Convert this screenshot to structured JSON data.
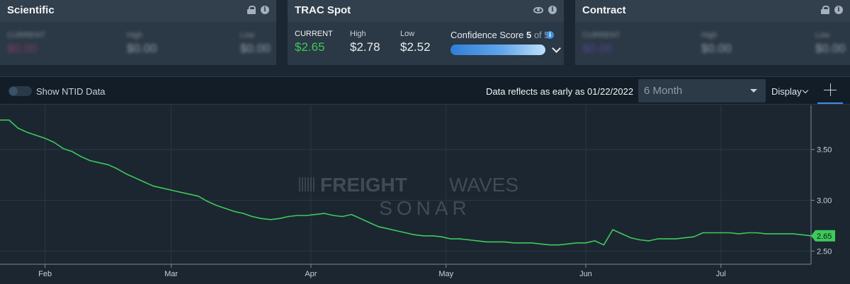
{
  "cards": {
    "scientific": {
      "title": "Scientific",
      "current_label": "CURRENT",
      "current_value": "$0.00",
      "high_label": "High",
      "high_value": "$0.00",
      "low_label": "Low",
      "low_value": "$0.00"
    },
    "trac_spot": {
      "title": "TRAC Spot",
      "current_label": "CURRENT",
      "current_value": "$2.65",
      "high_label": "High",
      "high_value": "$2.78",
      "low_label": "Low",
      "low_value": "$2.52",
      "confidence_label": "Confidence Score",
      "confidence_score": "5",
      "confidence_of": "of 5"
    },
    "contract": {
      "title": "Contract",
      "current_label": "CURRENT",
      "current_value": "$0.00",
      "high_label": "High",
      "high_value": "$0.00",
      "low_label": "Low",
      "low_value": "$0.00"
    }
  },
  "toolbar": {
    "ntid_label": "Show NTID Data",
    "reflects_text": "Data reflects as early as 01/22/2022",
    "range_value": "6 Month",
    "display_label": "Display"
  },
  "watermark": {
    "line1_bold": "FREIGHT",
    "line1_light": "WAVES",
    "line2": "SONAR"
  },
  "colors": {
    "line": "#3ec95a",
    "current_value": "#3ec95a",
    "accent": "#3f8de0"
  },
  "chart_data": {
    "type": "line",
    "title": "",
    "xlabel": "",
    "ylabel": "",
    "ylim": [
      2.37,
      3.88
    ],
    "yticks": [
      2.5,
      3.0,
      3.5
    ],
    "ytick_labels": [
      "2.50",
      "3.00",
      "3.50"
    ],
    "xlim": [
      0,
      180
    ],
    "xticks": [
      10,
      38,
      69,
      99,
      130,
      160
    ],
    "xtick_labels": [
      "Feb",
      "Mar",
      "Apr",
      "May",
      "Jun",
      "Jul"
    ],
    "current_label": "2.65",
    "series": [
      {
        "x": [
          0,
          2,
          4,
          6,
          8,
          10,
          12,
          14,
          16,
          18,
          20,
          22,
          24,
          26,
          28,
          30,
          32,
          34,
          36,
          38,
          40,
          42,
          44,
          46,
          48,
          50,
          52,
          54,
          56,
          58,
          60,
          62,
          64,
          66,
          68,
          70,
          72,
          74,
          76,
          78,
          80,
          82,
          84,
          86,
          88,
          90,
          92,
          94,
          96,
          98,
          100,
          102,
          104,
          106,
          108,
          110,
          112,
          114,
          116,
          118,
          120,
          122,
          124,
          126,
          128,
          130,
          132,
          134,
          136,
          138,
          140,
          142,
          144,
          146,
          148,
          150,
          152,
          154,
          156,
          158,
          160,
          162,
          164,
          166,
          168,
          170,
          172,
          174,
          176,
          178,
          180
        ],
        "y": [
          3.79,
          3.79,
          3.71,
          3.67,
          3.64,
          3.61,
          3.57,
          3.51,
          3.48,
          3.43,
          3.39,
          3.37,
          3.35,
          3.31,
          3.26,
          3.22,
          3.18,
          3.14,
          3.12,
          3.1,
          3.08,
          3.06,
          3.04,
          2.99,
          2.95,
          2.92,
          2.89,
          2.87,
          2.84,
          2.82,
          2.81,
          2.82,
          2.84,
          2.85,
          2.85,
          2.86,
          2.87,
          2.85,
          2.84,
          2.86,
          2.82,
          2.78,
          2.74,
          2.72,
          2.7,
          2.68,
          2.66,
          2.65,
          2.65,
          2.64,
          2.62,
          2.62,
          2.61,
          2.6,
          2.59,
          2.59,
          2.59,
          2.58,
          2.58,
          2.58,
          2.57,
          2.56,
          2.56,
          2.57,
          2.58,
          2.58,
          2.6,
          2.56,
          2.71,
          2.67,
          2.63,
          2.61,
          2.6,
          2.62,
          2.62,
          2.62,
          2.63,
          2.64,
          2.68,
          2.68,
          2.68,
          2.68,
          2.67,
          2.68,
          2.68,
          2.67,
          2.67,
          2.67,
          2.67,
          2.66,
          2.65
        ]
      }
    ]
  }
}
